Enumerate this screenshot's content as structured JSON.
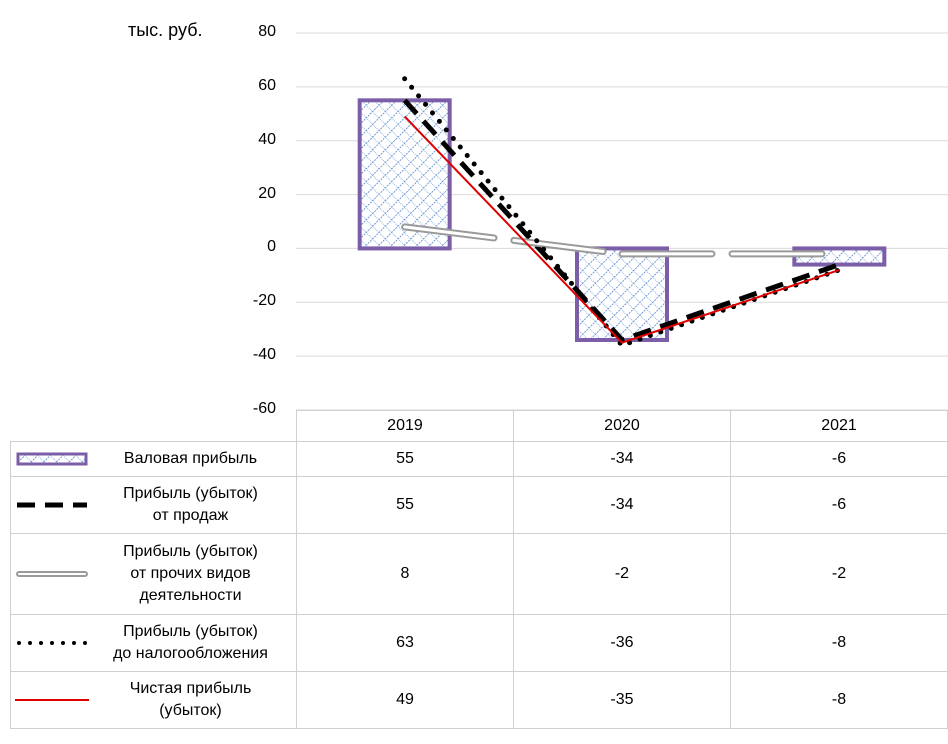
{
  "unit_label": "тыс. руб.",
  "chart_data": {
    "type": "bar",
    "categories": [
      "2019",
      "2020",
      "2021"
    ],
    "ylim": [
      -60,
      80
    ],
    "yticks": [
      "80",
      "60",
      "40",
      "20",
      "0",
      "-20",
      "-40",
      "-60"
    ],
    "grid": true,
    "series": [
      {
        "name": "Валовая прибыль",
        "kind": "bar",
        "values": [
          55,
          -34,
          -6
        ],
        "color": "#7b5ea7",
        "fill": "#4a7cc7"
      },
      {
        "name": "Прибыль (убыток) от продаж",
        "kind": "line",
        "style": "dashed",
        "values": [
          55,
          -34,
          -6
        ],
        "color": "#000000"
      },
      {
        "name": "Прибыль (убыток) от прочих видов деятельности",
        "kind": "line",
        "style": "double-gray",
        "values": [
          8,
          -2,
          -2
        ],
        "color": "#9a9a9a"
      },
      {
        "name": "Прибыль (убыток) до налогообложения",
        "kind": "line",
        "style": "dotted",
        "values": [
          63,
          -36,
          -8
        ],
        "color": "#000000"
      },
      {
        "name": "Чистая прибыль (убыток)",
        "kind": "line",
        "style": "solid",
        "values": [
          49,
          -35,
          -8
        ],
        "color": "#e00000"
      }
    ],
    "table_rows": [
      {
        "label_lines": [
          "Валовая прибыль"
        ],
        "values": [
          "55",
          "-34",
          "-6"
        ]
      },
      {
        "label_lines": [
          "Прибыль (убыток)",
          "от продаж"
        ],
        "values": [
          "55",
          "-34",
          "-6"
        ]
      },
      {
        "label_lines": [
          "Прибыль (убыток)",
          "от прочих видов",
          "деятельности"
        ],
        "values": [
          "8",
          "-2",
          "-2"
        ]
      },
      {
        "label_lines": [
          "Прибыль (убыток)",
          "до налогообложения"
        ],
        "values": [
          "63",
          "-36",
          "-8"
        ]
      },
      {
        "label_lines": [
          "Чистая прибыль",
          "(убыток)"
        ],
        "values": [
          "49",
          "-35",
          "-8"
        ]
      }
    ]
  }
}
